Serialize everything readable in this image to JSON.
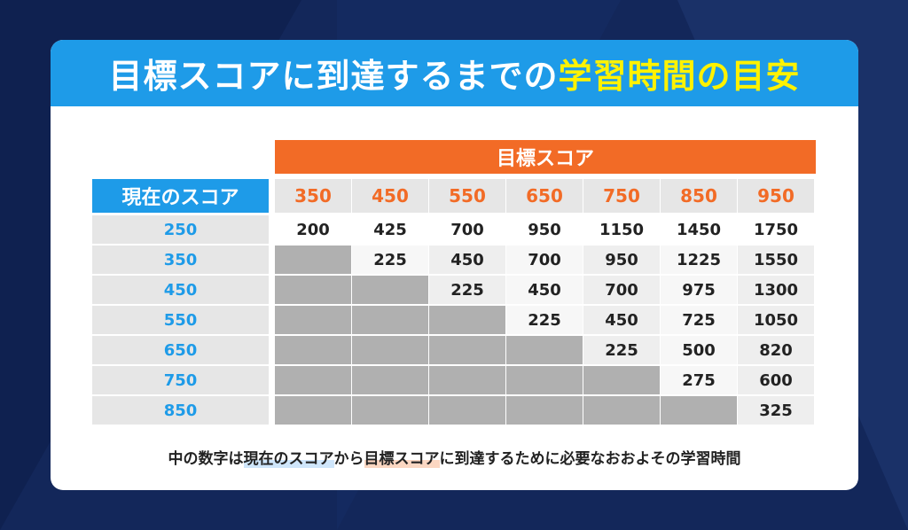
{
  "title": {
    "main": "目標スコアに到達するまでの",
    "highlight": "学習時間の目安"
  },
  "target_label": "目標スコア",
  "current_label": "現在のスコア",
  "target_scores": [
    "350",
    "450",
    "550",
    "650",
    "750",
    "850",
    "950"
  ],
  "rows": [
    {
      "score": "250",
      "values": [
        "200",
        "425",
        "700",
        "950",
        "1150",
        "1450",
        "1750"
      ]
    },
    {
      "score": "350",
      "values": [
        "",
        "225",
        "450",
        "700",
        "950",
        "1225",
        "1550"
      ]
    },
    {
      "score": "450",
      "values": [
        "",
        "",
        "225",
        "450",
        "700",
        "975",
        "1300"
      ]
    },
    {
      "score": "550",
      "values": [
        "",
        "",
        "",
        "225",
        "450",
        "725",
        "1050"
      ]
    },
    {
      "score": "650",
      "values": [
        "",
        "",
        "",
        "",
        "225",
        "500",
        "820"
      ]
    },
    {
      "score": "750",
      "values": [
        "",
        "",
        "",
        "",
        "",
        "275",
        "600"
      ]
    },
    {
      "score": "850",
      "values": [
        "",
        "",
        "",
        "",
        "",
        "",
        "325"
      ]
    }
  ],
  "footnote": {
    "part1": "中の数字は",
    "current": "現在のスコア",
    "part2": "から",
    "target": "目標スコア",
    "part3": "に到達するために必要なおおよその学習時間"
  },
  "colors": {
    "blue": "#1e9be8",
    "orange": "#f26b26",
    "yellow": "#fff200",
    "background": "#13275a"
  }
}
